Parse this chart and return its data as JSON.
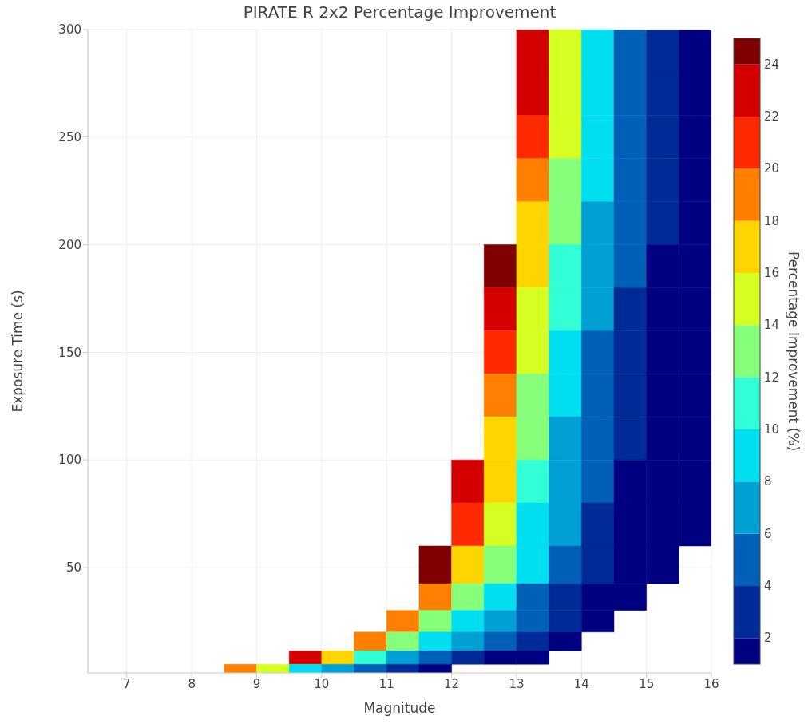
{
  "chart_data": {
    "type": "heatmap",
    "title": "PIRATE R 2x2 Percentage Improvement",
    "xlabel": "Magnitude",
    "ylabel": "Exposure Time (s)",
    "clabel": "Percentage Improvement (%)",
    "x": [
      7.25,
      7.75,
      8.25,
      8.75,
      9.25,
      9.75,
      10.25,
      10.75,
      11.25,
      11.75,
      12.25,
      12.75,
      13.25,
      13.75,
      14.25,
      14.75,
      15.25,
      15.75
    ],
    "y": [
      290,
      270,
      250,
      230,
      210,
      190,
      170,
      150,
      130,
      110,
      90,
      70,
      50,
      35,
      25,
      15,
      7.5,
      2.5
    ],
    "cells": [
      [
        null,
        null,
        null,
        null,
        null,
        null,
        null,
        null,
        null,
        null,
        null,
        null,
        23.5,
        15.7,
        9.8,
        5.7,
        3.0,
        1.5
      ],
      [
        null,
        null,
        null,
        null,
        null,
        null,
        null,
        null,
        null,
        null,
        null,
        null,
        22.3,
        15.0,
        9.4,
        5.5,
        2.9,
        1.5
      ],
      [
        null,
        null,
        null,
        null,
        null,
        null,
        null,
        null,
        null,
        null,
        null,
        null,
        21.1,
        14.2,
        8.9,
        5.3,
        2.7,
        1.5
      ],
      [
        null,
        null,
        null,
        null,
        null,
        null,
        null,
        null,
        null,
        null,
        null,
        null,
        19.5,
        13.2,
        8.3,
        4.9,
        2.5,
        1.5
      ],
      [
        null,
        null,
        null,
        null,
        null,
        null,
        null,
        null,
        null,
        null,
        null,
        null,
        17.9,
        12.2,
        7.7,
        4.6,
        2.3,
        1.5
      ],
      [
        null,
        null,
        null,
        null,
        null,
        null,
        null,
        null,
        null,
        null,
        null,
        24.2,
        16.7,
        11.1,
        6.9,
        4.0,
        1.5,
        1.5
      ],
      [
        null,
        null,
        null,
        null,
        null,
        null,
        null,
        null,
        null,
        null,
        null,
        22.6,
        15.6,
        10.2,
        6.3,
        3.6,
        1.5,
        1.5
      ],
      [
        null,
        null,
        null,
        null,
        null,
        null,
        null,
        null,
        null,
        null,
        null,
        21.1,
        14.5,
        9.4,
        5.7,
        3.2,
        1.5,
        1.5
      ],
      [
        null,
        null,
        null,
        null,
        null,
        null,
        null,
        null,
        null,
        null,
        null,
        19.7,
        13.5,
        8.7,
        5.3,
        2.8,
        1.5,
        1.5
      ],
      [
        null,
        null,
        null,
        null,
        null,
        null,
        null,
        null,
        null,
        null,
        null,
        17.8,
        12.3,
        7.9,
        4.8,
        2.5,
        1.5,
        1.5
      ],
      [
        null,
        null,
        null,
        null,
        null,
        null,
        null,
        null,
        null,
        null,
        23.7,
        16.5,
        11.1,
        7.0,
        4.2,
        1.9,
        1.5,
        1.5
      ],
      [
        null,
        null,
        null,
        null,
        null,
        null,
        null,
        null,
        null,
        null,
        21.2,
        14.8,
        9.7,
        6.0,
        3.5,
        1.5,
        1.5,
        1.5
      ],
      [
        null,
        null,
        null,
        null,
        null,
        null,
        null,
        null,
        null,
        24.8,
        17.5,
        12.1,
        8.0,
        4.9,
        2.7,
        1.5,
        1.5,
        null
      ],
      [
        null,
        null,
        null,
        null,
        null,
        null,
        null,
        null,
        null,
        18.4,
        13.2,
        8.8,
        5.7,
        3.4,
        1.5,
        1.5,
        null,
        null
      ],
      [
        null,
        null,
        null,
        null,
        null,
        null,
        null,
        null,
        18.8,
        13.8,
        9.5,
        6.4,
        4.0,
        2.2,
        1.5,
        null,
        null,
        null
      ],
      [
        null,
        null,
        null,
        null,
        null,
        null,
        null,
        18.8,
        13.8,
        9.5,
        6.4,
        4.0,
        2.2,
        1.5,
        null,
        null,
        null,
        null
      ],
      [
        null,
        null,
        null,
        null,
        null,
        22.6,
        16.2,
        11.2,
        7.5,
        4.7,
        2.6,
        1.5,
        1.5,
        null,
        null,
        null,
        null,
        null
      ],
      [
        null,
        null,
        null,
        19.0,
        14.1,
        9.8,
        6.7,
        4.4,
        2.5,
        1.5,
        null,
        null,
        null,
        null,
        null,
        null,
        null,
        null
      ]
    ],
    "colors": [
      "#000080",
      "#002a96",
      "#0060b8",
      "#009fd4",
      "#00dff0",
      "#33ffd6",
      "#86ff7a",
      "#d6ff22",
      "#ffd500",
      "#ff7f00",
      "#ff2a00",
      "#d40000",
      "#7f0000"
    ],
    "clim": [
      1,
      25
    ],
    "cticks": [
      2,
      4,
      6,
      8,
      10,
      12,
      14,
      16,
      18,
      20,
      22,
      24
    ],
    "xlim": [
      6.4,
      16
    ],
    "xticks": [
      7,
      8,
      9,
      10,
      11,
      12,
      13,
      14,
      15,
      16
    ],
    "ylim": [
      1,
      300
    ],
    "yticks": [
      50,
      100,
      150,
      200,
      250,
      300
    ],
    "grid": true
  }
}
